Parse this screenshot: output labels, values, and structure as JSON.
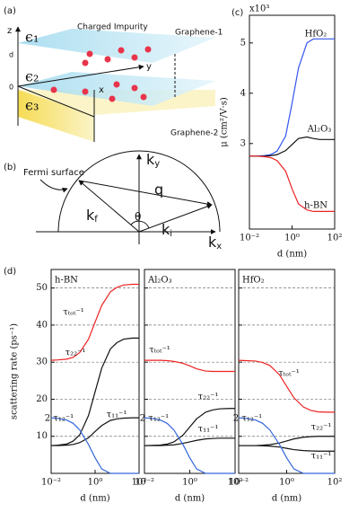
{
  "panel_labels": [
    "(a)",
    "(b)",
    "(c)",
    "(d)"
  ],
  "diagram_a": {
    "epsilons": [
      "ϵ₁",
      "ϵ₂",
      "ϵ₃"
    ],
    "axes": [
      "z",
      "y",
      "x"
    ],
    "ticks": [
      "d",
      "0"
    ],
    "labels": [
      "Charged Impurity",
      "Graphene-1",
      "Graphene-2"
    ]
  },
  "diagram_b": {
    "axes": [
      [
        "k",
        "y"
      ],
      [
        "k",
        "x"
      ]
    ],
    "vectors": [
      "q",
      [
        "k",
        "f"
      ],
      [
        "k",
        "i"
      ]
    ],
    "angle": "θ",
    "label": "Fermi surface"
  },
  "chart_data": [
    {
      "type": "line",
      "x_label": "d (nm)",
      "y_label": "μ (cm²/V·s)",
      "y_multiplier": "x10³",
      "log_x": true,
      "grid": false,
      "xlim": [
        0.01,
        100
      ],
      "xticks": [
        {
          "value": 0.01,
          "label": "10⁻²"
        },
        {
          "value": 1,
          "label": "10⁰"
        },
        {
          "value": 100,
          "label": "10²"
        }
      ],
      "ylim": [
        1.3,
        5.55
      ],
      "yticks": [
        3,
        4,
        5
      ],
      "x": [
        0.01,
        0.02,
        0.05,
        0.1,
        0.2,
        0.5,
        1,
        2,
        5,
        10,
        20,
        50,
        100
      ],
      "series": [
        {
          "name": "HfO₂",
          "color": "#3355ee",
          "values": [
            2.75,
            2.75,
            2.76,
            2.78,
            2.85,
            3.15,
            3.8,
            4.5,
            5.0,
            5.08,
            5.08,
            5.08,
            5.08
          ]
        },
        {
          "name": "Al₂O₃",
          "color": "#111111",
          "values": [
            2.75,
            2.75,
            2.75,
            2.76,
            2.78,
            2.86,
            2.98,
            3.1,
            3.13,
            3.1,
            3.08,
            3.08,
            3.08
          ]
        },
        {
          "name": "h-BN",
          "color": "#ee2222",
          "values": [
            2.75,
            2.75,
            2.74,
            2.72,
            2.66,
            2.45,
            2.1,
            1.8,
            1.68,
            1.65,
            1.65,
            1.65,
            1.65
          ]
        }
      ]
    },
    {
      "type": "line",
      "title": "h-BN",
      "x_label": "d (nm)",
      "y_label": "scattering rate (ps⁻¹)",
      "log_x": true,
      "grid": true,
      "xlim": [
        0.01,
        100
      ],
      "xticks": [
        {
          "value": 0.01,
          "label": "10⁻²"
        },
        {
          "value": 1,
          "label": "10⁰"
        },
        {
          "value": 100,
          "label": "10²"
        }
      ],
      "ylim": [
        0,
        55
      ],
      "yticks": [
        10,
        20,
        30,
        40,
        50
      ],
      "x": [
        0.01,
        0.02,
        0.05,
        0.1,
        0.2,
        0.5,
        1,
        2,
        5,
        10,
        20,
        50,
        100
      ],
      "series": [
        {
          "name": "τₜₒₜ⁻¹",
          "color": "#ee2222",
          "values": [
            30.5,
            30.6,
            30.8,
            31.3,
            32.6,
            36.2,
            40.8,
            45.3,
            49,
            50.2,
            50.8,
            51,
            51
          ]
        },
        {
          "name": "τ₂₂⁻¹",
          "color": "#111111",
          "values": [
            7.5,
            7.6,
            7.9,
            8.7,
            10.4,
            15.6,
            22,
            28.4,
            33.6,
            35.3,
            36.2,
            36.5,
            36.5
          ]
        },
        {
          "name": "τ₁₁⁻¹",
          "color": "#111111",
          "values": [
            7.5,
            7.5,
            7.6,
            7.8,
            8.3,
            9.6,
            11.3,
            12.9,
            14.3,
            14.7,
            14.9,
            15,
            15
          ]
        },
        {
          "name": "2 τ₁₂⁻¹",
          "color": "#3366dd",
          "values": [
            15,
            14.85,
            14.4,
            13.5,
            11.7,
            7.8,
            4.2,
            1.2,
            0,
            0,
            0,
            0,
            0
          ]
        }
      ]
    },
    {
      "type": "line",
      "title": "Al₂O₃",
      "x_label": "d (nm)",
      "log_x": true,
      "grid": true,
      "xlim": [
        0.01,
        100
      ],
      "xticks": [
        {
          "value": 0.01,
          "label": "10⁻²"
        },
        {
          "value": 1,
          "label": "10⁰"
        },
        {
          "value": 100,
          "label": "10²"
        }
      ],
      "ylim": [
        0,
        55
      ],
      "yticks": [
        10,
        20,
        30,
        40,
        50
      ],
      "x": [
        0.01,
        0.02,
        0.05,
        0.1,
        0.2,
        0.5,
        1,
        2,
        5,
        10,
        20,
        50,
        100
      ],
      "series": [
        {
          "name": "τₜₒₜ⁻¹",
          "color": "#ee2222",
          "values": [
            30.5,
            30.5,
            30.5,
            30.4,
            30.2,
            29.7,
            29,
            28.2,
            27.6,
            27.5,
            27.5,
            27.5,
            27.5
          ]
        },
        {
          "name": "τ₂₂⁻¹",
          "color": "#111111",
          "values": [
            7.5,
            7.55,
            7.65,
            7.9,
            8.5,
            10.3,
            12.5,
            14.7,
            16.5,
            17.1,
            17.4,
            17.5,
            17.5
          ]
        },
        {
          "name": "τ₁₁⁻¹",
          "color": "#111111",
          "values": [
            7.5,
            7.5,
            7.5,
            7.6,
            7.7,
            8.1,
            8.5,
            8.9,
            9.3,
            9.4,
            9.5,
            9.5,
            9.5
          ]
        },
        {
          "name": "2 τ₁₂⁻¹",
          "color": "#3366dd",
          "values": [
            15,
            14.85,
            14.4,
            13.5,
            11.7,
            7.8,
            4.2,
            1.2,
            0,
            0,
            0,
            0,
            0
          ]
        }
      ]
    },
    {
      "type": "line",
      "title": "HfO₂",
      "x_label": "d (nm)",
      "log_x": true,
      "grid": true,
      "xlim": [
        0.01,
        100
      ],
      "xticks": [
        {
          "value": 0.01,
          "label": "10⁻²"
        },
        {
          "value": 1,
          "label": "10⁰"
        },
        {
          "value": 100,
          "label": "10²"
        }
      ],
      "ylim": [
        0,
        55
      ],
      "yticks": [
        10,
        20,
        30,
        40,
        50
      ],
      "x": [
        0.01,
        0.02,
        0.05,
        0.1,
        0.2,
        0.5,
        1,
        2,
        5,
        10,
        20,
        50,
        100
      ],
      "series": [
        {
          "name": "τₜₒₜ⁻¹",
          "color": "#ee2222",
          "values": [
            30.5,
            30.4,
            30.3,
            29.9,
            29.1,
            26.6,
            23.5,
            20.4,
            17.9,
            17,
            16.6,
            16.5,
            16.5
          ]
        },
        {
          "name": "τ₂₂⁻¹",
          "color": "#111111",
          "values": [
            7.5,
            7.5,
            7.5,
            7.6,
            7.75,
            8.2,
            8.75,
            9.3,
            9.75,
            9.9,
            10,
            10,
            10
          ]
        },
        {
          "name": "τ₁₁⁻¹",
          "color": "#111111",
          "values": [
            7.5,
            7.5,
            7.5,
            7.45,
            7.35,
            7.1,
            6.75,
            6.4,
            6.15,
            6.05,
            6,
            6,
            6
          ]
        },
        {
          "name": "2 τ₁₂⁻¹",
          "color": "#3366dd",
          "values": [
            15,
            14.85,
            14.4,
            13.5,
            11.7,
            7.8,
            4.2,
            1.2,
            0,
            0,
            0,
            0,
            0
          ]
        }
      ]
    }
  ]
}
